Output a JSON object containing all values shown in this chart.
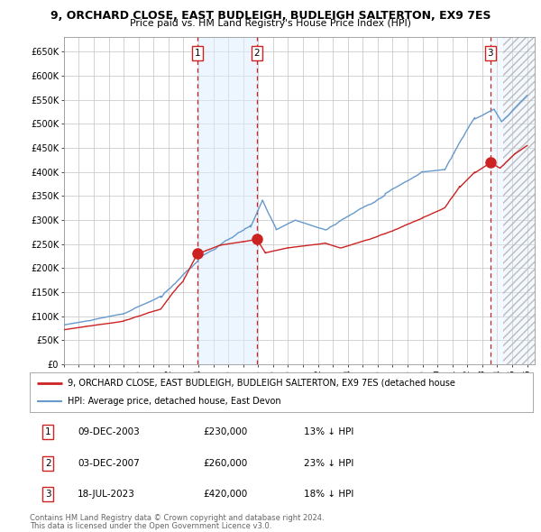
{
  "title": "9, ORCHARD CLOSE, EAST BUDLEIGH, BUDLEIGH SALTERTON, EX9 7ES",
  "subtitle": "Price paid vs. HM Land Registry's House Price Index (HPI)",
  "xlim_start": 1995.0,
  "xlim_end": 2026.5,
  "ylim_bottom": 0,
  "ylim_top": 680000,
  "yticks": [
    0,
    50000,
    100000,
    150000,
    200000,
    250000,
    300000,
    350000,
    400000,
    450000,
    500000,
    550000,
    600000,
    650000
  ],
  "ytick_labels": [
    "£0",
    "£50K",
    "£100K",
    "£150K",
    "£200K",
    "£250K",
    "£300K",
    "£350K",
    "£400K",
    "£450K",
    "£500K",
    "£550K",
    "£600K",
    "£650K"
  ],
  "xtick_years": [
    1995,
    1996,
    1997,
    1998,
    1999,
    2000,
    2001,
    2002,
    2003,
    2004,
    2005,
    2006,
    2007,
    2008,
    2009,
    2010,
    2011,
    2012,
    2013,
    2014,
    2015,
    2016,
    2017,
    2018,
    2019,
    2020,
    2021,
    2022,
    2023,
    2024,
    2025,
    2026
  ],
  "sale_dates": [
    2003.94,
    2007.92,
    2023.54
  ],
  "sale_prices": [
    230000,
    260000,
    420000
  ],
  "sale_labels": [
    "1",
    "2",
    "3"
  ],
  "sale_annotations": [
    [
      "1",
      "09-DEC-2003",
      "£230,000",
      "13% ↓ HPI"
    ],
    [
      "2",
      "03-DEC-2007",
      "£260,000",
      "23% ↓ HPI"
    ],
    [
      "3",
      "18-JUL-2023",
      "£420,000",
      "18% ↓ HPI"
    ]
  ],
  "hpi_color": "#6699cc",
  "price_color": "#cc2222",
  "grid_color": "#cccccc",
  "shade_color": "#ddeeff",
  "shade_alpha": 0.5,
  "hatch_start": 2024.42,
  "legend_line1": "9, ORCHARD CLOSE, EAST BUDLEIGH, BUDLEIGH SALTERTON, EX9 7ES (detached house",
  "legend_line2": "HPI: Average price, detached house, East Devon",
  "footer_line1": "Contains HM Land Registry data © Crown copyright and database right 2024.",
  "footer_line2": "This data is licensed under the Open Government Licence v3.0."
}
